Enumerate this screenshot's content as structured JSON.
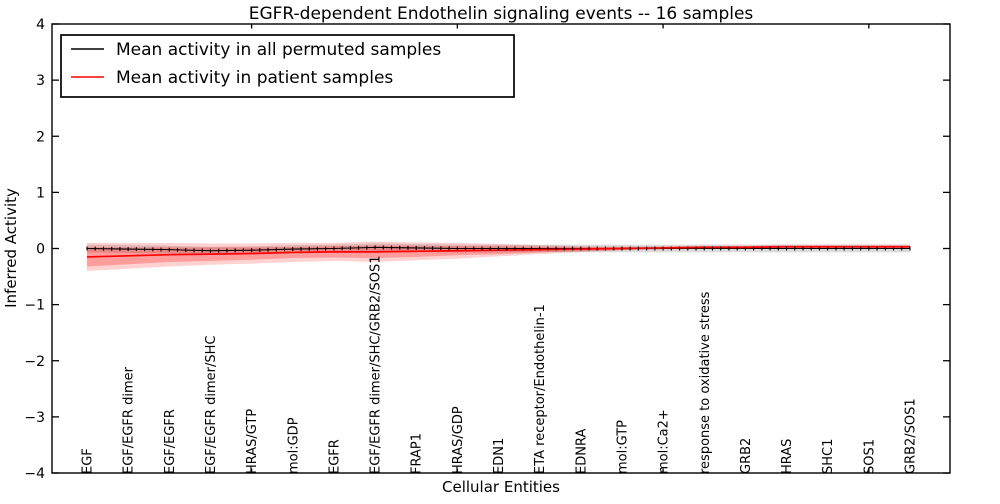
{
  "title": "EGFR-dependent Endothelin signaling events -- 16 samples",
  "legend": {
    "entries": [
      {
        "label": "Mean activity in all permuted samples",
        "color": "#000000"
      },
      {
        "label": "Mean activity in patient samples",
        "color": "#ff0000"
      }
    ],
    "position": "upper left"
  },
  "chart_data": {
    "type": "line",
    "title": "EGFR-dependent Endothelin signaling events -- 16 samples",
    "xlabel": "Cellular Entities",
    "ylabel": "Inferred Activity",
    "ylim": [
      -4,
      4
    ],
    "ytick_values": [
      4,
      3,
      2,
      1,
      0,
      -1,
      -2,
      -3,
      -4
    ],
    "ytick_labels": [
      "4",
      "3",
      "2",
      "1",
      "0",
      "−1",
      "−2",
      "−3",
      "−4"
    ],
    "xtick_index_positions": [
      4,
      9,
      14,
      19
    ],
    "grid": false,
    "categories": [
      "EGF",
      "EGF/EGFR dimer",
      "EGF/EGFR",
      "EGF/EGFR dimer/SHC",
      "HRAS/GTP",
      "mol:GDP",
      "EGFR",
      "EGF/EGFR dimer/SHC/GRB2/SOS1",
      "FRAP1",
      "HRAS/GDP",
      "EDN1",
      "ETA receptor/Endothelin-1",
      "EDNRA",
      "mol:GTP",
      "mol:Ca2+",
      "response to oxidative stress",
      "GRB2",
      "HRAS",
      "SHC1",
      "SOS1",
      "GRB2/SOS1"
    ],
    "series": [
      {
        "name": "Mean activity in all permuted samples",
        "color": "#000000",
        "marker": "vertical-tick",
        "values": [
          0.0,
          -0.01,
          -0.02,
          -0.04,
          -0.03,
          -0.01,
          0.0,
          0.02,
          0.01,
          0.0,
          0.0,
          0.0,
          0.0,
          0.0,
          0.0,
          0.0,
          0.0,
          0.0,
          0.0,
          0.0,
          0.0
        ],
        "band": {
          "color": "#000000",
          "alpha": 0.14,
          "half_widths": [
            0.07,
            0.07,
            0.07,
            0.07,
            0.07,
            0.07,
            0.07,
            0.07,
            0.07,
            0.07,
            0.07,
            0.07,
            0.07,
            0.07,
            0.07,
            0.07,
            0.07,
            0.07,
            0.07,
            0.07,
            0.07
          ]
        }
      },
      {
        "name": "Mean activity in patient samples",
        "color": "#ff0000",
        "marker": "none",
        "values": [
          -0.15,
          -0.13,
          -0.11,
          -0.1,
          -0.09,
          -0.07,
          -0.06,
          -0.06,
          -0.05,
          -0.04,
          -0.03,
          -0.02,
          -0.01,
          0.0,
          0.01,
          0.02,
          0.02,
          0.03,
          0.03,
          0.03,
          0.03
        ],
        "band_inner": {
          "color": "#ff0000",
          "alpha": 0.25,
          "half_widths": [
            0.17,
            0.15,
            0.13,
            0.12,
            0.11,
            0.1,
            0.1,
            0.11,
            0.1,
            0.08,
            0.07,
            0.05,
            0.04,
            0.03,
            0.02,
            0.02,
            0.02,
            0.02,
            0.02,
            0.02,
            0.02
          ]
        },
        "band_outer": {
          "color": "#ff0000",
          "alpha": 0.18,
          "half_widths": [
            0.25,
            0.23,
            0.21,
            0.19,
            0.18,
            0.17,
            0.16,
            0.18,
            0.16,
            0.14,
            0.11,
            0.08,
            0.05,
            0.03,
            0.03,
            0.03,
            0.03,
            0.04,
            0.04,
            0.04,
            0.04
          ]
        }
      }
    ]
  }
}
